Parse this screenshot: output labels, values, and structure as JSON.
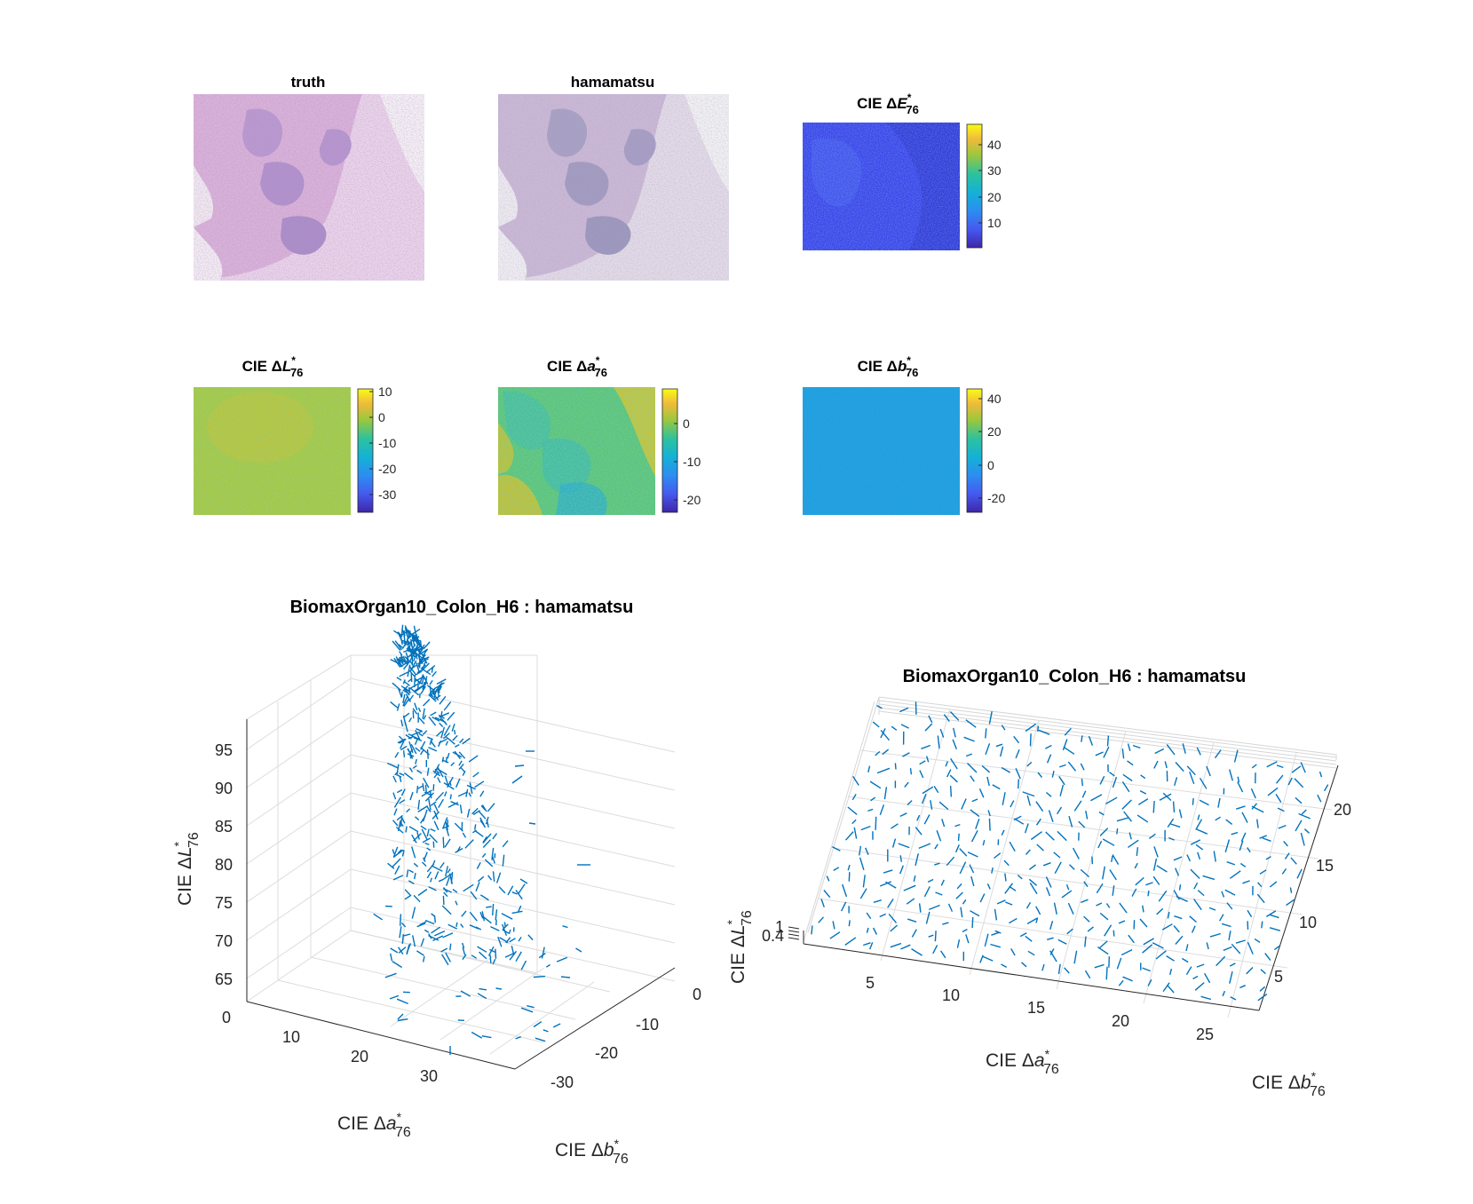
{
  "figure": {
    "panels": [
      {
        "id": "truth",
        "title": "truth"
      },
      {
        "id": "hamamatsu",
        "title": "hamamatsu"
      },
      {
        "id": "deltaE",
        "title_prefix": "CIE Δ",
        "symbol": "E",
        "sup": "*",
        "sub": "76",
        "colorbar_ticks": [
          "40",
          "30",
          "20",
          "10"
        ]
      },
      {
        "id": "deltaL",
        "title_prefix": "CIE Δ",
        "symbol": "L",
        "sup": "*",
        "sub": "76",
        "colorbar_ticks": [
          "10",
          "0",
          "-10",
          "-20",
          "-30"
        ]
      },
      {
        "id": "deltaA",
        "title_prefix": "CIE Δ",
        "symbol": "a",
        "sup": "*",
        "sub": "76",
        "colorbar_ticks": [
          "0",
          "-10",
          "-20"
        ]
      },
      {
        "id": "deltaB",
        "title_prefix": "CIE Δ",
        "symbol": "b",
        "sup": "*",
        "sub": "76",
        "colorbar_ticks": [
          "40",
          "20",
          "0",
          "-20"
        ]
      }
    ]
  },
  "chart_data": [
    {
      "type": "heatmap",
      "title": "CIE ΔE*76",
      "colorbar": {
        "min": 0,
        "max": 48,
        "ticks": [
          10,
          20,
          30,
          40
        ]
      },
      "typical_value": 5
    },
    {
      "type": "heatmap",
      "title": "CIE ΔL*76",
      "colorbar": {
        "min": -36,
        "max": 11,
        "ticks": [
          -30,
          -20,
          -10,
          0,
          10
        ]
      },
      "typical_value": -3
    },
    {
      "type": "heatmap",
      "title": "CIE Δa*76",
      "colorbar": {
        "min": -25,
        "max": 9,
        "ticks": [
          -20,
          -10,
          0
        ]
      },
      "typical_value": -3
    },
    {
      "type": "heatmap",
      "title": "CIE Δb*76",
      "colorbar": {
        "min": -29,
        "max": 47,
        "ticks": [
          -20,
          0,
          20,
          40
        ]
      },
      "typical_value": 7
    },
    {
      "type": "scatter",
      "subtype": "3d-quiver",
      "title": "BiomaxOrgan10_Colon_H6 : hamamatsu",
      "xlabel": "CIE Δa*76",
      "ylabel": "CIE Δb*76",
      "zlabel": "CIE ΔL*76",
      "xlim": [
        0,
        38
      ],
      "ylim": [
        -32,
        3
      ],
      "zlim": [
        62,
        100
      ],
      "xticks": [
        0,
        10,
        20,
        30
      ],
      "yticks": [
        0,
        -10,
        -20,
        -30
      ],
      "zticks": [
        65,
        70,
        75,
        80,
        85,
        90,
        95
      ],
      "color": "#0072bd"
    },
    {
      "type": "scatter",
      "subtype": "3d-quiver",
      "title": "BiomaxOrgan10_Colon_H6 : hamamatsu",
      "xlabel": "CIE Δa*76",
      "ylabel": "CIE Δb*76",
      "zlabel": "CIE ΔL*76",
      "xlim": [
        0,
        28
      ],
      "ylim": [
        0,
        23
      ],
      "zlim": [
        0.4,
        1
      ],
      "xticks": [
        5,
        10,
        15,
        20,
        25
      ],
      "yticks": [
        5,
        10,
        15,
        20
      ],
      "zticks": [
        0.4,
        1
      ],
      "color": "#0072bd"
    }
  ]
}
